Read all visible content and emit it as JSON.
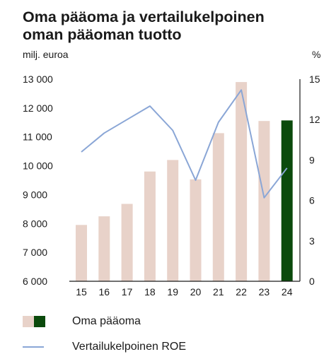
{
  "title": {
    "line1": "Oma pääoma ja vertailukelpoinen",
    "line2": "oman pääoman tuotto"
  },
  "chart_data": {
    "type": "bar",
    "categories": [
      "15",
      "16",
      "17",
      "18",
      "19",
      "20",
      "21",
      "22",
      "23",
      "24"
    ],
    "series": [
      {
        "name": "Oma pääoma",
        "type": "bar",
        "axis": "left",
        "values": [
          7950,
          8250,
          8680,
          9800,
          10200,
          9530,
          11130,
          12900,
          11550,
          11570
        ],
        "colors": [
          "#e8d2c9",
          "#e8d2c9",
          "#e8d2c9",
          "#e8d2c9",
          "#e8d2c9",
          "#e8d2c9",
          "#e8d2c9",
          "#e8d2c9",
          "#e8d2c9",
          "#0b4a0c"
        ]
      },
      {
        "name": "Vertailukelpoinen ROE",
        "type": "line",
        "axis": "right",
        "values": [
          9.6,
          11.0,
          12.0,
          13.0,
          11.2,
          7.5,
          11.8,
          14.2,
          6.2,
          8.4
        ],
        "color": "#8aa6d6"
      }
    ],
    "y_left": {
      "label": "milj. euroa",
      "ylim": [
        6000,
        13000
      ],
      "ticks": [
        "6 000",
        "7 000",
        "8 000",
        "9 000",
        "10 000",
        "11 000",
        "12 000",
        "13 000"
      ]
    },
    "y_right": {
      "label": "%",
      "ylim": [
        0,
        15
      ],
      "ticks": [
        "0",
        "3",
        "6",
        "9",
        "12",
        "15"
      ]
    },
    "grid": false,
    "legend_position": "bottom-left"
  },
  "legend": {
    "bar_label": "Oma pääoma",
    "line_label": "Vertailukelpoinen ROE"
  }
}
